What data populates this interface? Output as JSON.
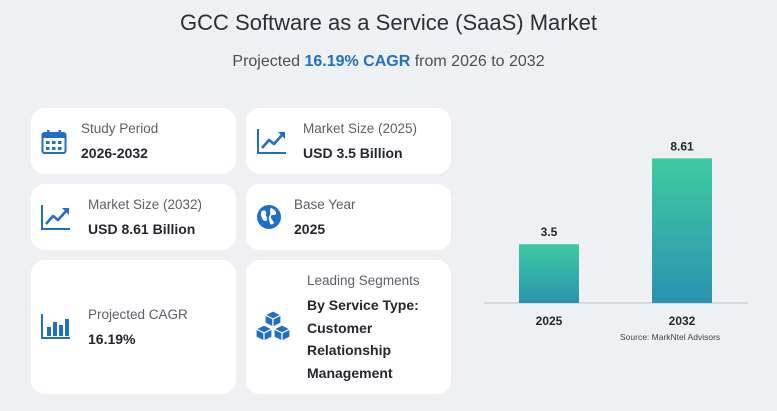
{
  "header": {
    "title": "GCC Software as a Service (SaaS) Market",
    "subtitle_prefix": "Projected ",
    "subtitle_highlight": "16.19% CAGR",
    "subtitle_suffix": " from 2026 to 2032"
  },
  "cards": {
    "study_period": {
      "label": "Study Period",
      "value": "2026-2032"
    },
    "market_size_2025": {
      "label": "Market Size (2025)",
      "value": "USD 3.5 Billion"
    },
    "market_size_2032": {
      "label": "Market Size (2032)",
      "value": "USD 8.61 Billion"
    },
    "base_year": {
      "label": "Base Year",
      "value": "2025"
    },
    "projected_cagr": {
      "label": "Projected CAGR",
      "value": "16.19%"
    },
    "leading_segments": {
      "label": "Leading Segments",
      "lines": [
        "By Service Type:",
        "Customer",
        "Relationship",
        "Management"
      ]
    }
  },
  "icons": {
    "study_period": "calendar-icon",
    "market_size_2025": "trend-up-icon",
    "market_size_2032": "trend-up-icon",
    "base_year": "globe-icon",
    "projected_cagr": "bar-chart-icon",
    "leading_segments": "cubes-icon"
  },
  "colors": {
    "accent": "#1f6fc6",
    "bar_top": "#3ecba0",
    "bar_bottom": "#2a93b0"
  },
  "chart_data": {
    "type": "bar",
    "categories": [
      "2025",
      "2032"
    ],
    "values": [
      3.5,
      8.61
    ],
    "data_labels": [
      "3.5",
      "8.61"
    ],
    "ylim": [
      0,
      10
    ],
    "grid": false,
    "source": "Source: MarkNtel Advisors"
  }
}
